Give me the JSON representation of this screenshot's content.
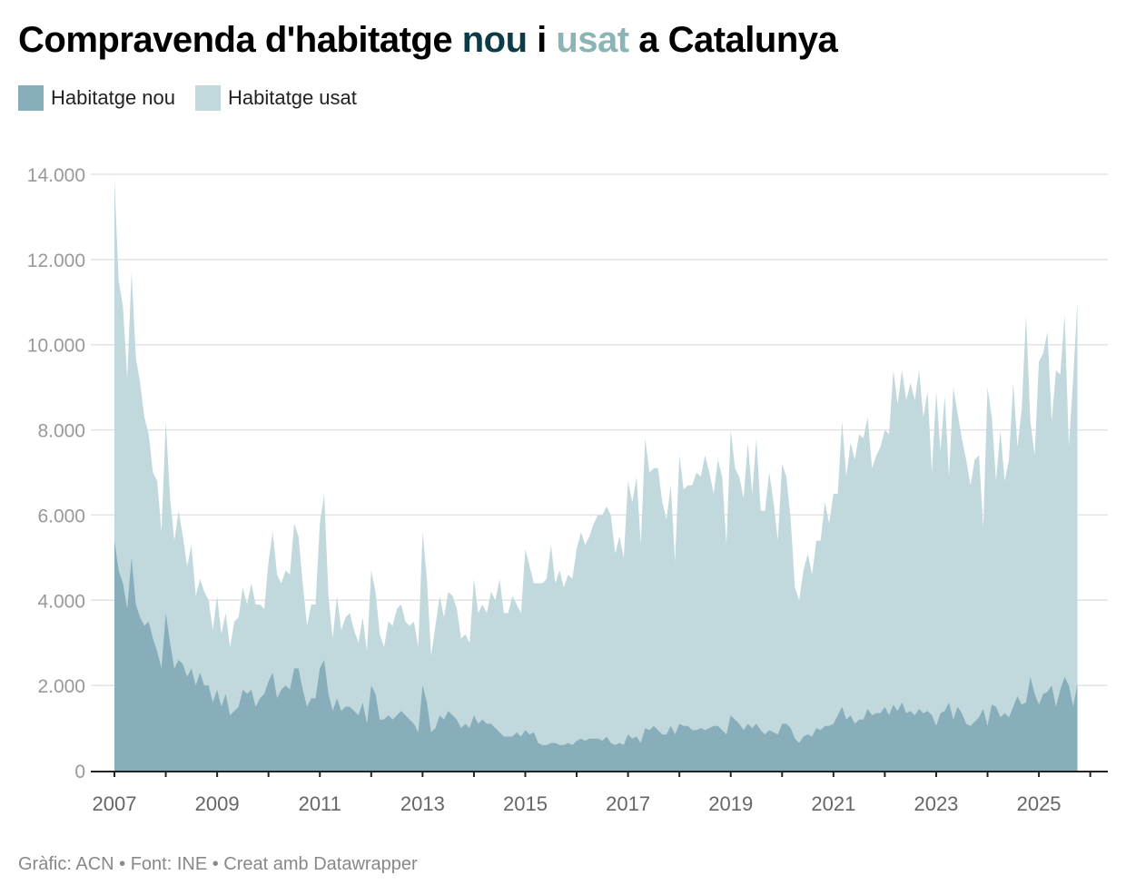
{
  "title": {
    "part1": "Compravenda d'habitatge ",
    "nou": "nou",
    "mid": " i ",
    "usat": "usat",
    "part2": " a Catalunya"
  },
  "colors": {
    "nou_title": "#0b3a48",
    "usat_title": "#8ab4b6",
    "nou_area": "#88adbb",
    "usat_area": "#c1d9dc",
    "grid": "#e3e3e3",
    "axis": "#222222"
  },
  "legend": [
    {
      "label": "Habitatge nou",
      "color": "#88adbb"
    },
    {
      "label": "Habitatge usat",
      "color": "#c1d9dc"
    }
  ],
  "footer": "Gràfic: ACN • Font: INE • Creat amb Datawrapper",
  "chart_data": {
    "type": "area",
    "stacked": true,
    "frequency": "monthly",
    "ylim": [
      0,
      14000
    ],
    "yticks": [
      "0",
      "2.000",
      "4.000",
      "6.000",
      "8.000",
      "10.000",
      "12.000",
      "14.000"
    ],
    "ytick_values": [
      0,
      2000,
      4000,
      6000,
      8000,
      10000,
      12000,
      14000
    ],
    "xticks": [
      "2007",
      "2009",
      "2011",
      "2013",
      "2015",
      "2017",
      "2019",
      "2021",
      "2023",
      "2025"
    ],
    "xlim": [
      "2007-01",
      "2026-04"
    ],
    "grid": true,
    "legend_position": "top-left",
    "series": [
      {
        "name": "Habitatge nou",
        "values_by_year": {
          "2007": [
            5400,
            4700,
            4400,
            3800,
            5000,
            3900,
            3600,
            3400,
            3500,
            3100,
            2800,
            2400
          ],
          "2008": [
            3700,
            3000,
            2400,
            2600,
            2500,
            2200,
            2400,
            2000,
            2300,
            2000,
            2000,
            1600
          ],
          "2009": [
            1900,
            1500,
            1800,
            1300,
            1400,
            1500,
            1900,
            1800,
            1900,
            1500,
            1700,
            1800
          ],
          "2010": [
            2100,
            2300,
            1700,
            1900,
            2000,
            1900,
            2400,
            2400,
            1900,
            1500,
            1700,
            1700
          ],
          "2011": [
            2400,
            2600,
            1800,
            1400,
            1700,
            1400,
            1500,
            1500,
            1400,
            1300,
            1600,
            1100
          ],
          "2012": [
            2000,
            1800,
            1200,
            1200,
            1300,
            1200,
            1300,
            1400,
            1300,
            1200,
            1100,
            900
          ],
          "2013": [
            2000,
            1600,
            900,
            1000,
            1300,
            1200,
            1400,
            1300,
            1200,
            1000,
            1100,
            1000
          ],
          "2014": [
            1300,
            1100,
            1200,
            1100,
            1100,
            1000,
            900,
            800,
            800,
            800,
            900,
            800
          ],
          "2015": [
            950,
            850,
            900,
            650,
            600,
            600,
            650,
            650,
            600,
            600,
            650,
            600
          ],
          "2016": [
            700,
            750,
            700,
            750,
            750,
            750,
            700,
            800,
            650,
            600,
            650,
            600
          ],
          "2017": [
            850,
            750,
            800,
            650,
            1000,
            950,
            1050,
            950,
            850,
            850,
            1050,
            850
          ],
          "2018": [
            1100,
            1050,
            1050,
            950,
            950,
            1000,
            950,
            1000,
            1050,
            1050,
            950,
            850
          ],
          "2019": [
            1300,
            1200,
            1100,
            950,
            1100,
            1000,
            1100,
            950,
            850,
            950,
            900,
            850
          ],
          "2020": [
            1100,
            1100,
            1000,
            750,
            650,
            800,
            850,
            800,
            1000,
            950,
            1050,
            1050
          ],
          "2021": [
            1100,
            1300,
            1500,
            1200,
            1300,
            1100,
            1200,
            1200,
            1450,
            1300,
            1350,
            1350
          ],
          "2022": [
            1500,
            1300,
            1550,
            1400,
            1600,
            1350,
            1400,
            1300,
            1450,
            1350,
            1400,
            1300
          ],
          "2023": [
            1050,
            1350,
            1400,
            1600,
            1200,
            1500,
            1350,
            1100,
            1050,
            1150,
            1250,
            1450
          ],
          "2024": [
            1050,
            1550,
            1500,
            1250,
            1350,
            1250,
            1500,
            1750,
            1550,
            1600,
            2200,
            1800
          ],
          "2025": [
            1550,
            1800,
            1850,
            2000,
            1500,
            1900,
            2200,
            2000,
            1500,
            2050
          ]
        }
      },
      {
        "name": "Habitatge usat",
        "values_by_year": {
          "2007": [
            8500,
            6800,
            6500,
            5400,
            6700,
            5800,
            5500,
            4900,
            4400,
            3900,
            4000,
            3200
          ],
          "2008": [
            4500,
            3400,
            3000,
            3500,
            3000,
            2600,
            2900,
            2100,
            2200,
            2200,
            2000,
            1700
          ],
          "2009": [
            2200,
            1700,
            1900,
            1600,
            2100,
            2100,
            2400,
            2100,
            2500,
            2400,
            2200,
            2000
          ],
          "2010": [
            2800,
            3300,
            2900,
            2500,
            2700,
            2700,
            3400,
            3100,
            2500,
            1900,
            2200,
            2200
          ],
          "2011": [
            3400,
            3900,
            2300,
            1700,
            2400,
            1900,
            2100,
            2200,
            1900,
            1700,
            2000,
            1700
          ],
          "2012": [
            2700,
            2400,
            2000,
            1700,
            2200,
            2200,
            2500,
            2500,
            2200,
            2200,
            2400,
            2000
          ],
          "2013": [
            3600,
            2900,
            1800,
            2400,
            2800,
            2400,
            2800,
            2800,
            2600,
            2100,
            2100,
            2000
          ],
          "2014": [
            3200,
            2600,
            2700,
            2600,
            3100,
            3000,
            3600,
            2900,
            2900,
            3300,
            3000,
            2900
          ],
          "2015": [
            4250,
            3950,
            3500,
            3750,
            3800,
            3900,
            4650,
            3750,
            4100,
            3700,
            3950,
            3900
          ],
          "2016": [
            4500,
            4850,
            4600,
            4750,
            5050,
            5250,
            5300,
            5400,
            5350,
            4500,
            4850,
            4400
          ],
          "2017": [
            5950,
            5550,
            6100,
            4650,
            6800,
            6050,
            6050,
            6150,
            5450,
            5050,
            5650,
            4050
          ],
          "2018": [
            6300,
            5550,
            5650,
            5750,
            6050,
            5900,
            6450,
            6000,
            5450,
            6250,
            5950,
            4450
          ],
          "2019": [
            6700,
            5900,
            5800,
            5450,
            6600,
            5500,
            6700,
            5150,
            5250,
            6050,
            5400,
            4550
          ],
          "2020": [
            6100,
            5800,
            4900,
            3550,
            3350,
            3900,
            4250,
            3800,
            4400,
            4450,
            5250,
            4750
          ],
          "2021": [
            5400,
            5200,
            6700,
            5700,
            6400,
            6200,
            6700,
            6600,
            6850,
            5800,
            6050,
            6250
          ],
          "2022": [
            6500,
            6600,
            7850,
            7200,
            7800,
            7350,
            7700,
            7400,
            7950,
            6950,
            7500,
            5700
          ],
          "2023": [
            7850,
            6150,
            7400,
            5300,
            7800,
            6900,
            6450,
            6200,
            5650,
            6150,
            6150,
            4250
          ],
          "2024": [
            7950,
            6750,
            5300,
            6750,
            5450,
            6050,
            7600,
            5850,
            6950,
            9100,
            6000,
            5600
          ],
          "2025": [
            8050,
            8000,
            8450,
            6200,
            7900,
            7400,
            8500,
            5600,
            7700,
            8950
          ]
        }
      }
    ]
  }
}
